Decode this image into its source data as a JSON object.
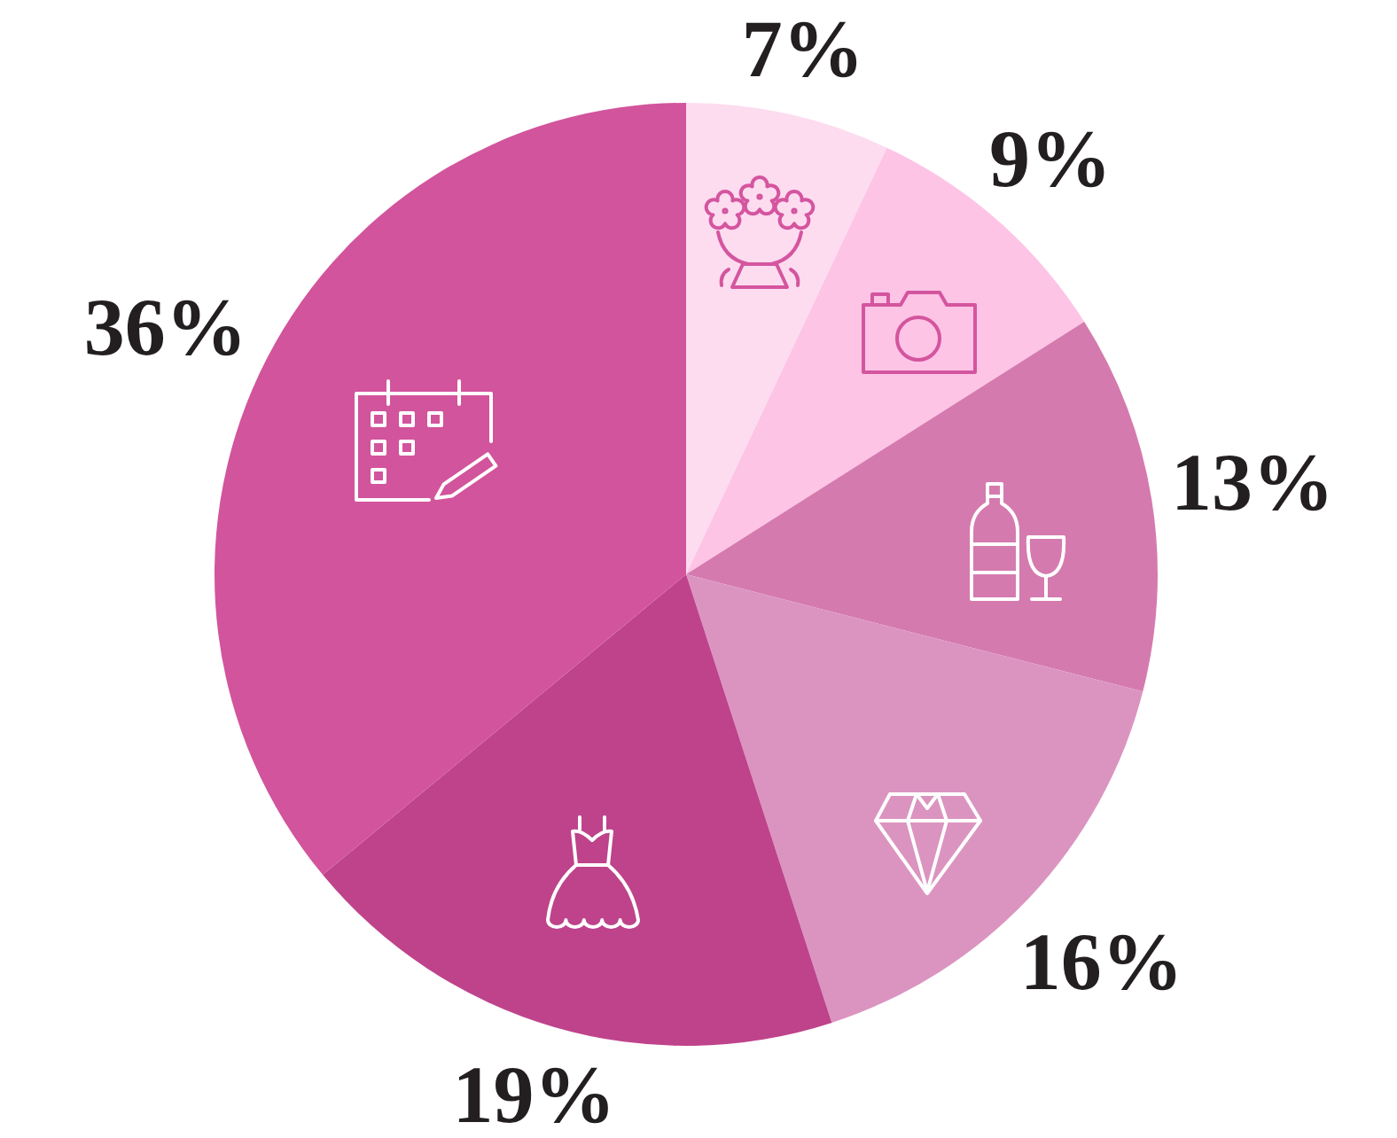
{
  "chart_data": {
    "type": "pie",
    "categories": [
      null,
      null,
      null,
      null,
      null,
      null
    ],
    "values": [
      7,
      9,
      13,
      16,
      19,
      36
    ],
    "colors": [
      "#fddcef",
      "#fdc4e6",
      "#d57aae",
      "#db94c0",
      "#be438b",
      "#d2549c"
    ],
    "value_labels": [
      "7%",
      "9%",
      "13%",
      "16%",
      "19%",
      "36%"
    ]
  }
}
